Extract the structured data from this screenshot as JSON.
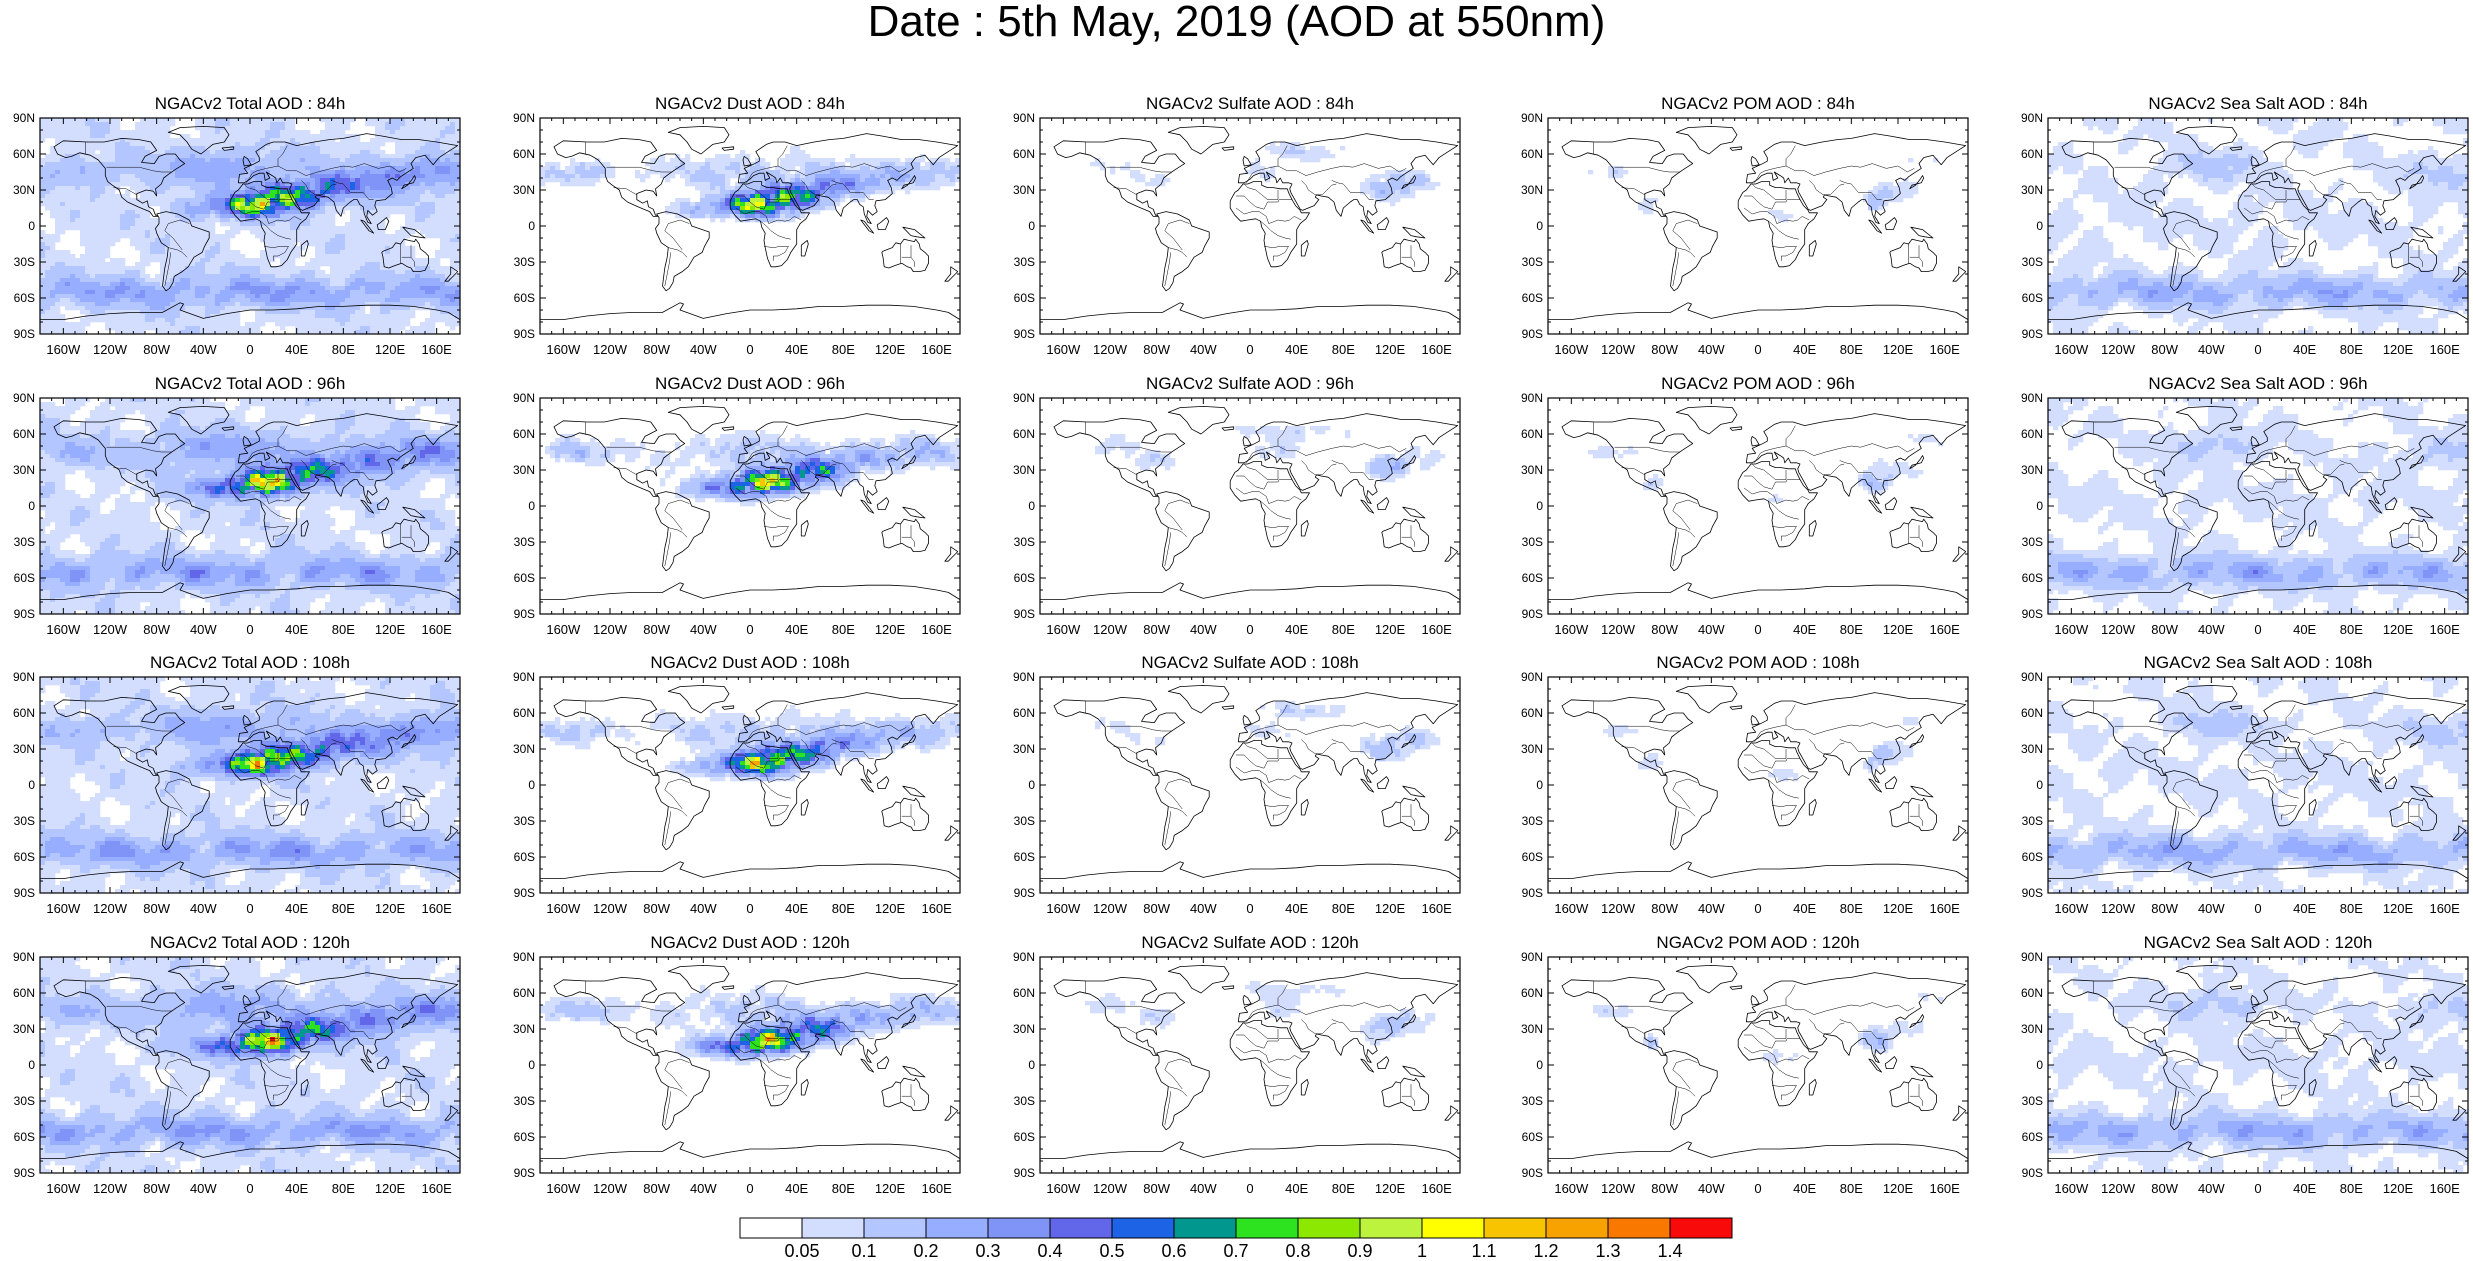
{
  "title": "Date : 5th May, 2019 (AOD at 550nm)",
  "map_axes": {
    "lat_ticks": [
      "90N",
      "60N",
      "30N",
      "0",
      "30S",
      "60S",
      "90S"
    ],
    "lon_ticks": [
      "160W",
      "120W",
      "80W",
      "40W",
      "0",
      "40E",
      "80E",
      "120E",
      "160E"
    ],
    "lon_range": [
      -180,
      180
    ],
    "lat_range": [
      -90,
      90
    ]
  },
  "colorbar": {
    "levels": [
      "0.05",
      "0.1",
      "0.2",
      "0.3",
      "0.4",
      "0.5",
      "0.6",
      "0.7",
      "0.8",
      "0.9",
      "1",
      "1.1",
      "1.2",
      "1.3",
      "1.4"
    ],
    "colors": [
      "#ffffff",
      "#d3deff",
      "#b4c6ff",
      "#97adff",
      "#7f94f6",
      "#6266e8",
      "#1d63e6",
      "#01968e",
      "#2de21f",
      "#8de800",
      "#bdf33c",
      "#ffff00",
      "#f8c400",
      "#f8a200",
      "#f87800",
      "#f80a0a"
    ]
  },
  "panels": [
    [
      {
        "title": "NGACv2 Total AOD : 84h",
        "species": "total"
      },
      {
        "title": "NGACv2 Dust AOD : 84h",
        "species": "dust"
      },
      {
        "title": "NGACv2 Sulfate AOD : 84h",
        "species": "sulfate"
      },
      {
        "title": "NGACv2 POM AOD : 84h",
        "species": "pom"
      },
      {
        "title": "NGACv2 Sea Salt AOD : 84h",
        "species": "seasalt"
      }
    ],
    [
      {
        "title": "NGACv2 Total AOD : 96h",
        "species": "total"
      },
      {
        "title": "NGACv2 Dust AOD : 96h",
        "species": "dust"
      },
      {
        "title": "NGACv2 Sulfate AOD : 96h",
        "species": "sulfate"
      },
      {
        "title": "NGACv2 POM AOD : 96h",
        "species": "pom"
      },
      {
        "title": "NGACv2 Sea Salt AOD : 96h",
        "species": "seasalt"
      }
    ],
    [
      {
        "title": "NGACv2 Total AOD : 108h",
        "species": "total"
      },
      {
        "title": "NGACv2 Dust AOD : 108h",
        "species": "dust"
      },
      {
        "title": "NGACv2 Sulfate AOD : 108h",
        "species": "sulfate"
      },
      {
        "title": "NGACv2 POM AOD : 108h",
        "species": "pom"
      },
      {
        "title": "NGACv2 Sea Salt AOD : 108h",
        "species": "seasalt"
      }
    ],
    [
      {
        "title": "NGACv2 Total AOD : 120h",
        "species": "total"
      },
      {
        "title": "NGACv2 Dust AOD : 120h",
        "species": "dust"
      },
      {
        "title": "NGACv2 Sulfate AOD : 120h",
        "species": "sulfate"
      },
      {
        "title": "NGACv2 POM AOD : 120h",
        "species": "pom"
      },
      {
        "title": "NGACv2 Sea Salt  AOD : 120h",
        "species": "seasalt"
      }
    ]
  ]
}
